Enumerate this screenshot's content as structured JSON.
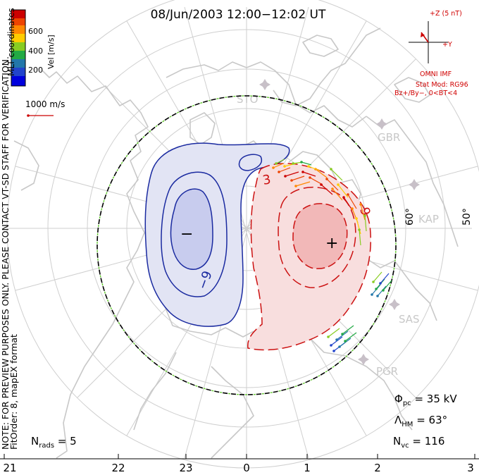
{
  "title": "08/Jun/2003 12:00−12:02 UT",
  "colorbar": {
    "label": "Vel [m/s]",
    "ticks": [
      "600",
      "400",
      "200"
    ],
    "colors": [
      "#cc0000",
      "#ee4400",
      "#ff8800",
      "#ffcc00",
      "#88cc22",
      "#22aa44",
      "#2277aa",
      "#2244cc",
      "#0000dd"
    ]
  },
  "left_labels": {
    "coords": "MLT coordinates",
    "note": "NOTE: FOR PREVIEW PURPOSES ONLY. PLEASE CONTACT VT-SD STAFF FOR VERIFICATION.",
    "fit": "FitOrder: 8, mapEX format"
  },
  "scale_vector": {
    "label": "1000 m/s"
  },
  "imf": {
    "z_label": "+Z (5 nT)",
    "y_label": "+Y",
    "source": "OMNI IMF",
    "model": "Stat Mod: RG96",
    "model_cond": "Bz+/By−, 0<BT<4"
  },
  "stations": [
    "STO",
    "GBR",
    "KAP",
    "SAS",
    "PGR"
  ],
  "lat_labels": [
    "60°",
    "50°"
  ],
  "contour_labels": {
    "neg": "−9",
    "pos": "3",
    "pos2": "9"
  },
  "extrema": {
    "min": "−",
    "max": "+"
  },
  "mlt_ticks": [
    "21",
    "22",
    "23",
    "0",
    "1",
    "2",
    "3"
  ],
  "stats": {
    "phi": "Φ",
    "phi_sub": "pc",
    "phi_val": " = 35 kV",
    "lambda": "Λ",
    "lambda_sub": "HM",
    "lambda_val": " = 63°",
    "nvc": "N",
    "nvc_sub": "vc",
    "nvc_val": " = 116",
    "nrads": "N",
    "nrads_sub": "rads",
    "nrads_val": " = 5"
  },
  "colors": {
    "coast": "#c8c8c8",
    "grid": "#cfcfcf",
    "neg_contour": "#1a2aa0",
    "pos_contour": "#cc1111",
    "neg_fill": "#e2e4f4",
    "neg_fill_inner": "#c8ccee",
    "pos_fill": "#f8dede",
    "pos_fill_inner": "#f2b8b8",
    "hmb_dash": "#66cc33"
  }
}
